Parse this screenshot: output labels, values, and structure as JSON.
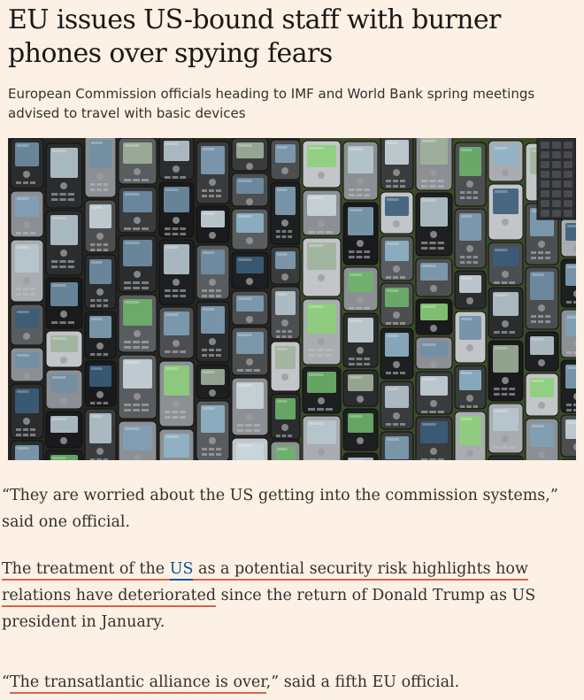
{
  "article": {
    "headline": "EU issues US-bound staff with burner phones over spying fears",
    "standfirst": "European Commission officials heading to IMF and World Bank spring meetings advised to travel with basic devices",
    "paragraphs": {
      "p1": {
        "text": "“They are worried about the US getting into the commission systems,” said one official."
      },
      "p2": {
        "link1": "The treatment of the ",
        "link_us": "US",
        "link2": " as a potential security risk highlights how relations have deteriorated",
        "rest": " since the return of Donald Trump as US president in January."
      },
      "p3": {
        "open_quote": "“",
        "link": "The transatlantic alliance is over",
        "rest": ",” said a fifth EU official."
      }
    }
  },
  "colors": {
    "background": "#fdf1e5",
    "link_underline": "#d6644f",
    "link_accent": "#0f5499",
    "text": "#33302e"
  }
}
